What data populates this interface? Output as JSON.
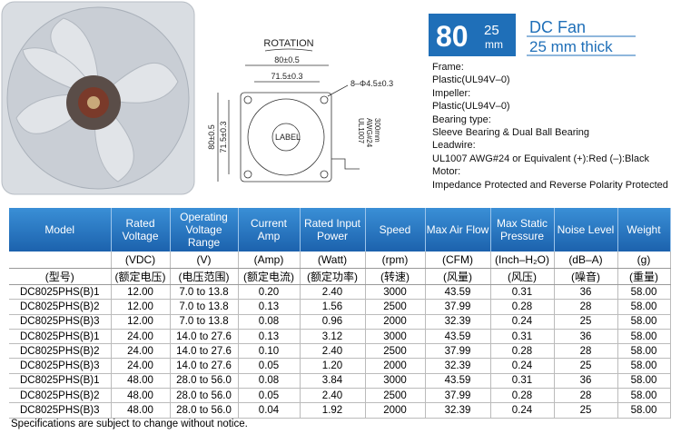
{
  "header": {
    "badge": {
      "size": "80",
      "thickness": "25",
      "unit": "mm"
    },
    "title": "DC Fan",
    "subtitle": "25 mm thick"
  },
  "drawing": {
    "rotation": "ROTATION",
    "outer_width": "80±0.5",
    "hole_spacing": "71.5±0.3",
    "holes": "8–Φ4.5±0.3",
    "label": "LABEL",
    "outer_height": "80±0.5",
    "hole_spacing_v": "71.5±0.3",
    "wire": [
      "UL1007",
      "AWG#24",
      "300mm"
    ]
  },
  "specs": [
    "Frame:",
    "Plastic(UL94V–0)",
    "Impeller:",
    "Plastic(UL94V–0)",
    "Bearing type:",
    "Sleeve Bearing & Dual Ball Bearing",
    "Leadwire:",
    "UL1007 AWG#24 or Equivalent (+):Red (–):Black",
    "Motor:",
    "Impedance Protected and Reverse Polarity Protected"
  ],
  "table": {
    "columns": [
      {
        "name": "Model",
        "cn": "(型号)"
      },
      {
        "name": "Rated Voltage",
        "unit": "(VDC)",
        "cn": "(额定电压)"
      },
      {
        "name": "Operating Voltage Range",
        "unit": "(V)",
        "cn": "(电压范围)"
      },
      {
        "name": "Current Amp",
        "unit": "(Amp)",
        "cn": "(额定电流)"
      },
      {
        "name": "Rated Input Power",
        "unit": "(Watt)",
        "cn": "(额定功率)"
      },
      {
        "name": "Speed",
        "unit": "(rpm)",
        "cn": "(转速)"
      },
      {
        "name": "Max Air Flow",
        "unit": "(CFM)",
        "cn": "(风量)"
      },
      {
        "name": "Max Static Pressure",
        "unit": "(Inch–H₂O)",
        "cn": "(风压)"
      },
      {
        "name": "Noise Level",
        "unit": "(dB–A)",
        "cn": "(噪音)"
      },
      {
        "name": "Weight",
        "unit": "(g)",
        "cn": "(重量)"
      }
    ],
    "rows": [
      [
        "DC8025PHS(B)1",
        "12.00",
        "7.0 to 13.8",
        "0.20",
        "2.40",
        "3000",
        "43.59",
        "0.31",
        "36",
        "58.00"
      ],
      [
        "DC8025PHS(B)2",
        "12.00",
        "7.0 to 13.8",
        "0.13",
        "1.56",
        "2500",
        "37.99",
        "0.28",
        "28",
        "58.00"
      ],
      [
        "DC8025PHS(B)3",
        "12.00",
        "7.0 to 13.8",
        "0.08",
        "0.96",
        "2000",
        "32.39",
        "0.24",
        "25",
        "58.00"
      ],
      [
        "DC8025PHS(B)1",
        "24.00",
        "14.0 to 27.6",
        "0.13",
        "3.12",
        "3000",
        "43.59",
        "0.31",
        "36",
        "58.00"
      ],
      [
        "DC8025PHS(B)2",
        "24.00",
        "14.0 to 27.6",
        "0.10",
        "2.40",
        "2500",
        "37.99",
        "0.28",
        "28",
        "58.00"
      ],
      [
        "DC8025PHS(B)3",
        "24.00",
        "14.0 to 27.6",
        "0.05",
        "1.20",
        "2000",
        "32.39",
        "0.24",
        "25",
        "58.00"
      ],
      [
        "DC8025PHS(B)1",
        "48.00",
        "28.0 to 56.0",
        "0.08",
        "3.84",
        "3000",
        "43.59",
        "0.31",
        "36",
        "58.00"
      ],
      [
        "DC8025PHS(B)2",
        "48.00",
        "28.0 to 56.0",
        "0.05",
        "2.40",
        "2500",
        "37.99",
        "0.28",
        "28",
        "58.00"
      ],
      [
        "DC8025PHS(B)3",
        "48.00",
        "28.0 to 56.0",
        "0.04",
        "1.92",
        "2000",
        "32.39",
        "0.24",
        "25",
        "58.00"
      ]
    ],
    "footnote": "Specifications are subject to change without notice."
  }
}
